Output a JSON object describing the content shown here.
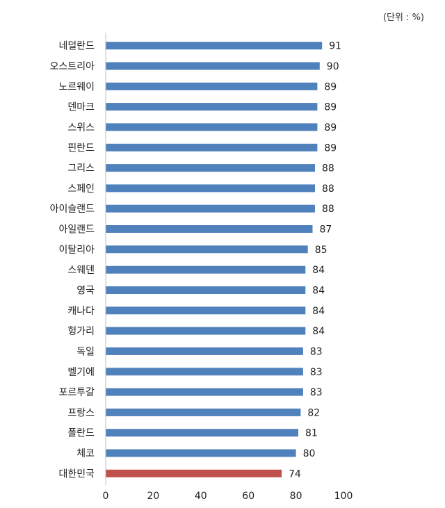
{
  "unit_label": "(단위 : %)",
  "colors": {
    "bar": "#4f81bd",
    "highlight": "#c0504d",
    "axis": "#bfbfbf",
    "text": "#222222"
  },
  "chart_data": {
    "type": "bar",
    "orientation": "horizontal",
    "title": "",
    "unit": "(단위 : %)",
    "xlabel": "",
    "ylabel": "",
    "xlim": [
      0,
      100
    ],
    "x_ticks": [
      0,
      20,
      40,
      60,
      80,
      100
    ],
    "highlight_category": "대한민국",
    "categories": [
      "네덜란드",
      "오스트리아",
      "노르웨이",
      "덴마크",
      "스위스",
      "핀란드",
      "그리스",
      "스페인",
      "아이슬랜드",
      "아일랜드",
      "이탈리아",
      "스웨덴",
      "영국",
      "캐나다",
      "헝가리",
      "독일",
      "벨기에",
      "포르투갈",
      "프랑스",
      "폴란드",
      "체코",
      "대한민국"
    ],
    "values": [
      91,
      90,
      89,
      89,
      89,
      89,
      88,
      88,
      88,
      87,
      85,
      84,
      84,
      84,
      84,
      83,
      83,
      83,
      82,
      81,
      80,
      74
    ]
  }
}
